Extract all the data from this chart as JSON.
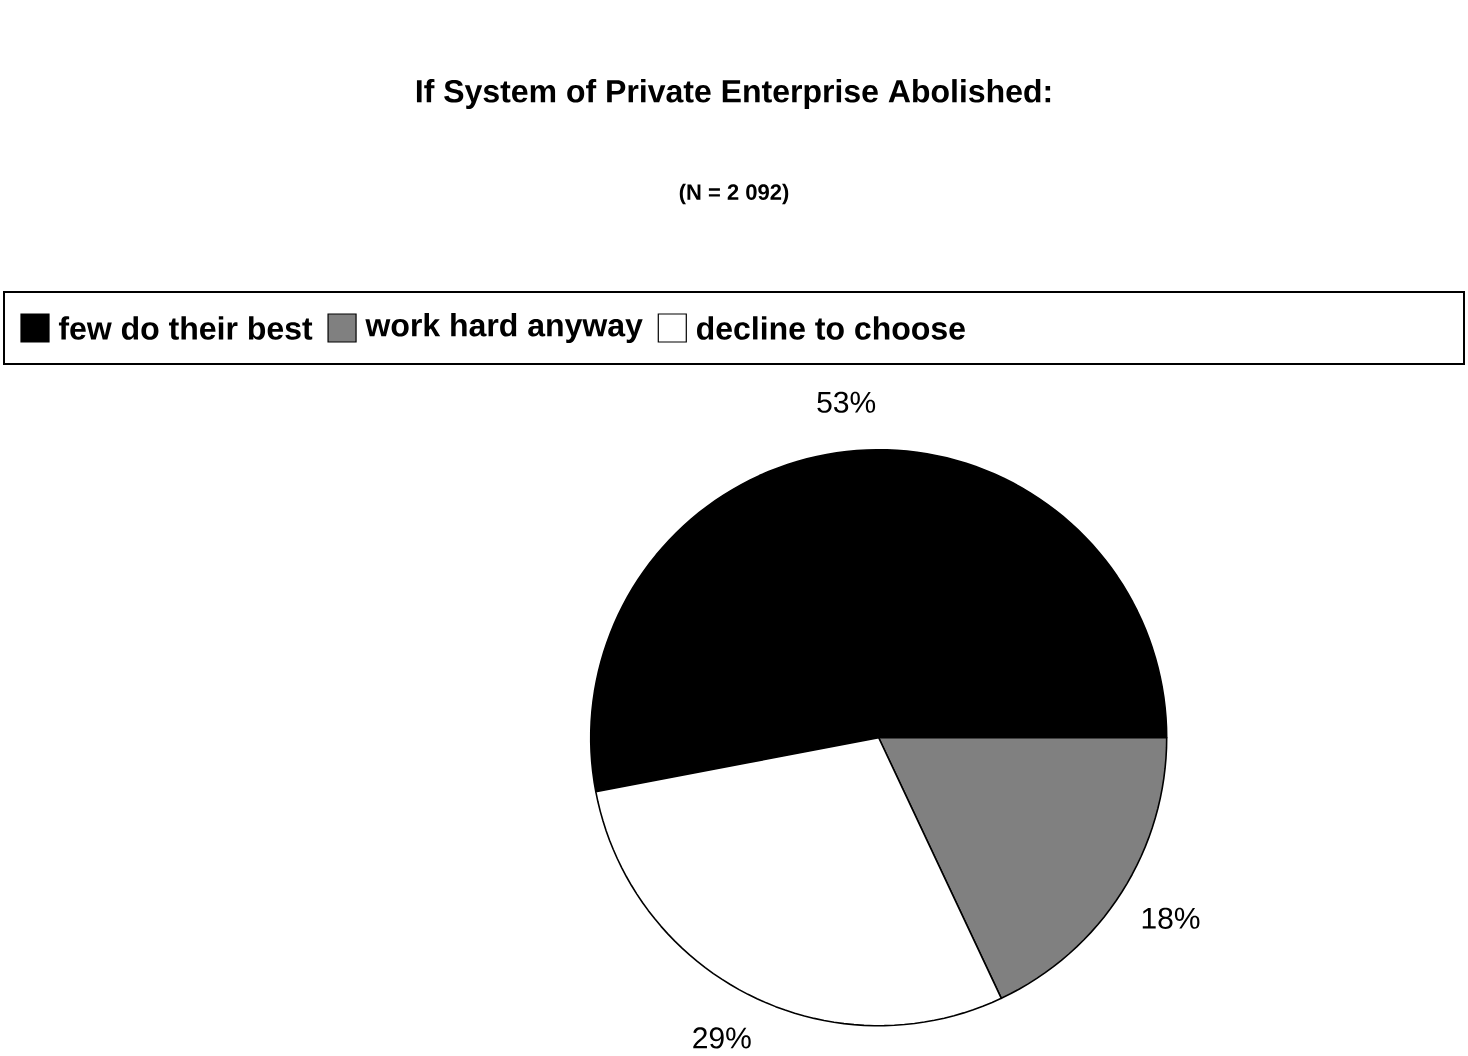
{
  "chart_data": {
    "type": "pie",
    "title": "If System of Private Enterprise Abolished:",
    "subtitle": "(N = 2 092)",
    "categories": [
      "few do their best",
      "work hard anyway",
      "decline to choose"
    ],
    "values": [
      53,
      18,
      29
    ],
    "colors": [
      "#000000",
      "#808080",
      "#ffffff"
    ],
    "value_labels": [
      "53%",
      "18%",
      "29%"
    ],
    "legend": "top"
  }
}
